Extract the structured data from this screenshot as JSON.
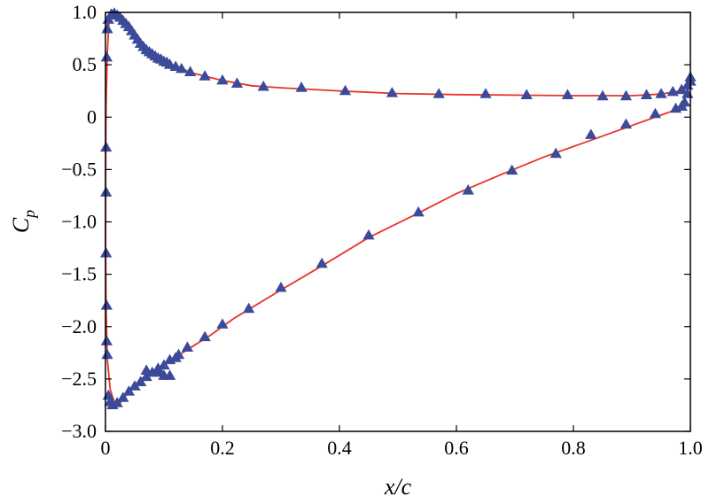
{
  "chart_data": {
    "type": "line",
    "title": "",
    "xlabel": "x/c",
    "ylabel_main": "C",
    "ylabel_sub": "p",
    "xlim": [
      0,
      1
    ],
    "ylim": [
      -3,
      1
    ],
    "grid": false,
    "xticks": [
      0,
      0.2,
      0.4,
      0.6,
      0.8,
      1.0
    ],
    "xtick_labels": [
      "0",
      "0.2",
      "0.4",
      "0.6",
      "0.8",
      "1.0"
    ],
    "yticks": [
      1.0,
      0.5,
      0,
      -0.5,
      -1.0,
      -1.5,
      -2.0,
      -2.5,
      -3.0
    ],
    "ytick_labels": [
      "1.0",
      "0.5",
      "0",
      "−0.5",
      "−1.0",
      "−1.5",
      "−2.0",
      "−2.5",
      "−3.0"
    ],
    "line_color": "#e8332a",
    "marker_color": "#3b4a99",
    "marker_shape": "triangle",
    "series": [
      {
        "line": [
          [
            0.999,
            0.3
          ],
          [
            0.98,
            0.25
          ],
          [
            0.95,
            0.22
          ],
          [
            0.9,
            0.205
          ],
          [
            0.8,
            0.205
          ],
          [
            0.7,
            0.21
          ],
          [
            0.6,
            0.215
          ],
          [
            0.5,
            0.225
          ],
          [
            0.4,
            0.25
          ],
          [
            0.3,
            0.28
          ],
          [
            0.25,
            0.3
          ],
          [
            0.2,
            0.35
          ],
          [
            0.15,
            0.42
          ],
          [
            0.1,
            0.53
          ],
          [
            0.07,
            0.65
          ],
          [
            0.05,
            0.76
          ],
          [
            0.03,
            0.9
          ],
          [
            0.02,
            0.96
          ],
          [
            0.012,
            0.98
          ],
          [
            0.006,
            0.92
          ],
          [
            0.003,
            0.6
          ],
          [
            0.001,
            0.1
          ],
          [
            0.0005,
            -0.5
          ],
          [
            0.0003,
            -1.2
          ],
          [
            0.001,
            -1.8
          ],
          [
            0.003,
            -2.3
          ],
          [
            0.008,
            -2.6
          ],
          [
            0.015,
            -2.72
          ],
          [
            0.025,
            -2.73
          ],
          [
            0.04,
            -2.62
          ],
          [
            0.06,
            -2.5
          ],
          [
            0.08,
            -2.44
          ],
          [
            0.1,
            -2.36
          ],
          [
            0.14,
            -2.22
          ],
          [
            0.18,
            -2.08
          ],
          [
            0.22,
            -1.92
          ],
          [
            0.3,
            -1.65
          ],
          [
            0.37,
            -1.42
          ],
          [
            0.45,
            -1.15
          ],
          [
            0.53,
            -0.93
          ],
          [
            0.6,
            -0.73
          ],
          [
            0.68,
            -0.54
          ],
          [
            0.75,
            -0.38
          ],
          [
            0.83,
            -0.22
          ],
          [
            0.9,
            -0.08
          ],
          [
            0.95,
            0.02
          ],
          [
            0.98,
            0.08
          ],
          [
            0.999,
            0.12
          ]
        ],
        "markers": [
          [
            0.015,
            0.99
          ],
          [
            0.02,
            0.97
          ],
          [
            0.025,
            0.95
          ],
          [
            0.03,
            0.92
          ],
          [
            0.035,
            0.89
          ],
          [
            0.04,
            0.86
          ],
          [
            0.045,
            0.82
          ],
          [
            0.05,
            0.78
          ],
          [
            0.055,
            0.74
          ],
          [
            0.06,
            0.7
          ],
          [
            0.065,
            0.67
          ],
          [
            0.07,
            0.64
          ],
          [
            0.075,
            0.62
          ],
          [
            0.08,
            0.6
          ],
          [
            0.085,
            0.58
          ],
          [
            0.09,
            0.56
          ],
          [
            0.095,
            0.55
          ],
          [
            0.1,
            0.53
          ],
          [
            0.105,
            0.52
          ],
          [
            0.11,
            0.5
          ],
          [
            0.12,
            0.48
          ],
          [
            0.13,
            0.46
          ],
          [
            0.145,
            0.43
          ],
          [
            0.17,
            0.39
          ],
          [
            0.2,
            0.35
          ],
          [
            0.225,
            0.32
          ],
          [
            0.27,
            0.29
          ],
          [
            0.335,
            0.28
          ],
          [
            0.41,
            0.25
          ],
          [
            0.49,
            0.23
          ],
          [
            0.57,
            0.22
          ],
          [
            0.65,
            0.22
          ],
          [
            0.72,
            0.21
          ],
          [
            0.79,
            0.21
          ],
          [
            0.85,
            0.2
          ],
          [
            0.89,
            0.2
          ],
          [
            0.925,
            0.21
          ],
          [
            0.95,
            0.22
          ],
          [
            0.97,
            0.24
          ],
          [
            0.985,
            0.26
          ],
          [
            0.995,
            0.3
          ],
          [
            1.0,
            0.34
          ],
          [
            1.0,
            0.38
          ],
          [
            0.995,
            0.22
          ],
          [
            0.99,
            0.14
          ],
          [
            0.985,
            0.1
          ],
          [
            0.975,
            0.08
          ],
          [
            0.94,
            0.03
          ],
          [
            0.89,
            -0.07
          ],
          [
            0.83,
            -0.17
          ],
          [
            0.77,
            -0.35
          ],
          [
            0.695,
            -0.51
          ],
          [
            0.62,
            -0.7
          ],
          [
            0.535,
            -0.91
          ],
          [
            0.45,
            -1.13
          ],
          [
            0.37,
            -1.4
          ],
          [
            0.3,
            -1.63
          ],
          [
            0.245,
            -1.83
          ],
          [
            0.2,
            -1.98
          ],
          [
            0.17,
            -2.1
          ],
          [
            0.14,
            -2.2
          ],
          [
            0.125,
            -2.27
          ],
          [
            0.11,
            -2.32
          ],
          [
            0.1,
            -2.37
          ],
          [
            0.09,
            -2.4
          ],
          [
            0.08,
            -2.44
          ],
          [
            0.07,
            -2.48
          ],
          [
            0.06,
            -2.53
          ],
          [
            0.05,
            -2.57
          ],
          [
            0.04,
            -2.62
          ],
          [
            0.03,
            -2.68
          ],
          [
            0.02,
            -2.73
          ],
          [
            0.012,
            -2.75
          ],
          [
            0.008,
            -2.72
          ],
          [
            0.005,
            -2.66
          ],
          [
            0.003,
            -2.27
          ],
          [
            0.002,
            -2.14
          ],
          [
            0.002,
            -1.8
          ],
          [
            0.001,
            -1.3
          ],
          [
            0.001,
            -0.72
          ],
          [
            0.001,
            -0.29
          ],
          [
            0.002,
            0.57
          ],
          [
            0.003,
            0.84
          ],
          [
            0.005,
            0.93
          ],
          [
            0.01,
            0.98
          ],
          [
            0.1,
            -2.47
          ],
          [
            0.11,
            -2.47
          ],
          [
            0.09,
            -2.44
          ],
          [
            0.07,
            -2.42
          ],
          [
            0.12,
            -2.3
          ]
        ]
      }
    ]
  }
}
